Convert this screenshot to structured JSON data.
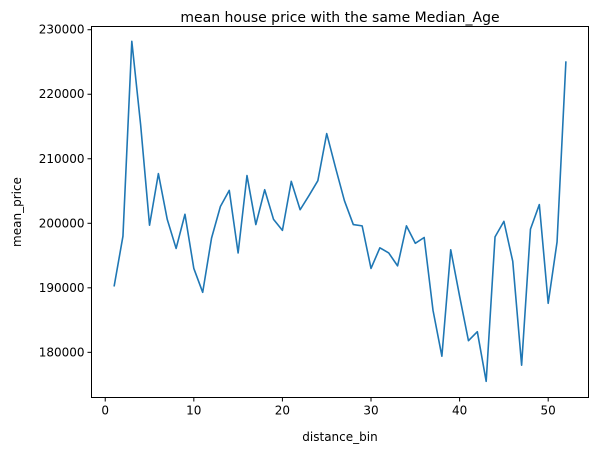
{
  "chart_data": {
    "type": "line",
    "title": "mean house price with the same Median_Age",
    "xlabel": "distance_bin",
    "ylabel": "mean_price",
    "xlim": [
      -1.55,
      54.55
    ],
    "ylim": [
      173000,
      230500
    ],
    "xticks": [
      0,
      10,
      20,
      30,
      40,
      50
    ],
    "yticks": [
      180000,
      190000,
      200000,
      210000,
      220000,
      230000
    ],
    "grid": false,
    "line_color": "#1f77b4",
    "series": [
      {
        "x": [
          1,
          2,
          3,
          4,
          5,
          6,
          7,
          8,
          9,
          10,
          11,
          12,
          13,
          14,
          15,
          16,
          17,
          18,
          19,
          20,
          21,
          22,
          23,
          24,
          25,
          26,
          27,
          28,
          29,
          30,
          31,
          32,
          33,
          34,
          35,
          36,
          37,
          38,
          39,
          40,
          41,
          42,
          43,
          44,
          45,
          46,
          47,
          48,
          49,
          50,
          51,
          52
        ],
        "values": [
          190200,
          198000,
          228200,
          215200,
          199700,
          207700,
          200600,
          196100,
          201400,
          193000,
          189300,
          197700,
          202600,
          205100,
          195400,
          207400,
          199800,
          205200,
          200600,
          198900,
          206500,
          202100,
          204300,
          206600,
          213900,
          208600,
          203500,
          199800,
          199600,
          193000,
          196200,
          195400,
          193400,
          199600,
          196900,
          197800,
          186500,
          179400,
          195900,
          188700,
          181800,
          183200,
          175500,
          197900,
          200300,
          194100,
          178000,
          199100,
          202900,
          187600,
          197100,
          225100
        ]
      }
    ]
  }
}
